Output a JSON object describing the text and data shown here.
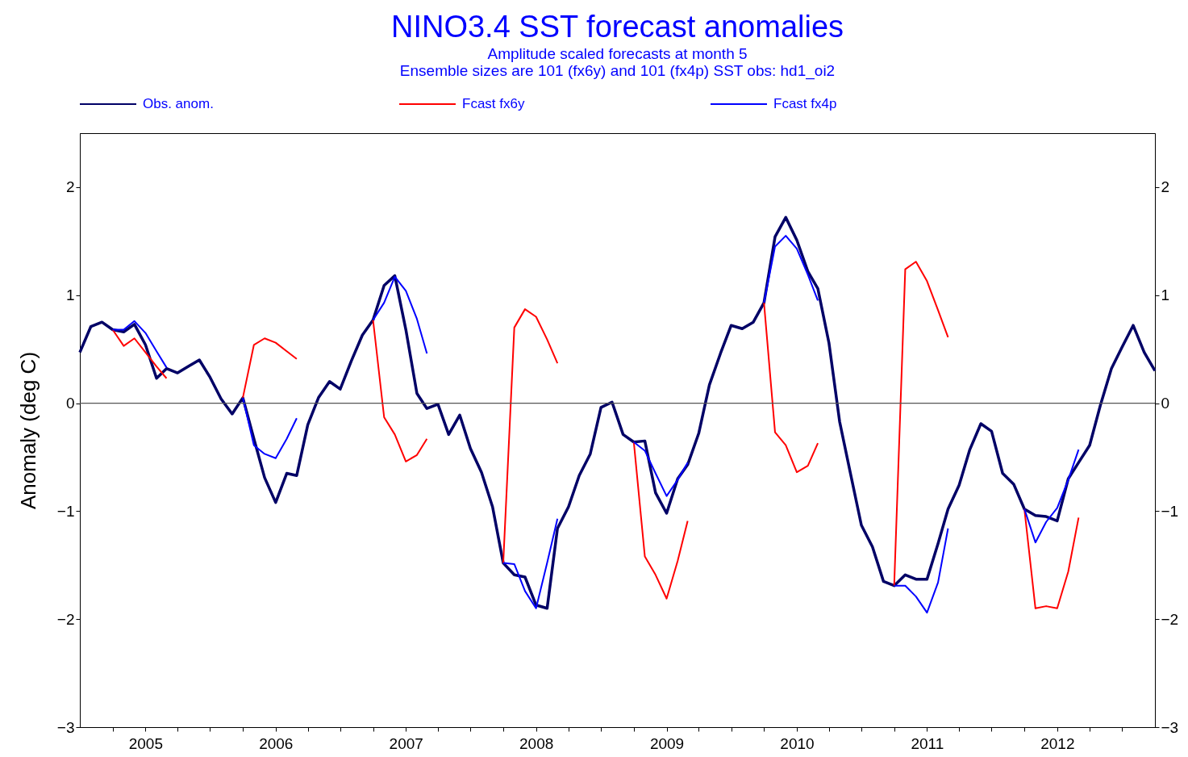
{
  "chart_data": {
    "type": "line",
    "title": "NINO3.4 SST forecast anomalies",
    "subtitle": "Amplitude scaled forecasts at month  5\nEnsemble sizes are 101 (fx6y)  and 101 (fx4p)     SST obs: hd1_oi2",
    "ylabel": "Anomaly (deg C)",
    "x": [
      "2004-07",
      "2004-08",
      "2004-09",
      "2004-10",
      "2004-11",
      "2004-12",
      "2005-01",
      "2005-02",
      "2005-03",
      "2005-04",
      "2005-05",
      "2005-06",
      "2005-07",
      "2005-08",
      "2005-09",
      "2005-10",
      "2005-11",
      "2005-12",
      "2006-01",
      "2006-02",
      "2006-03",
      "2006-04",
      "2006-05",
      "2006-06",
      "2006-07",
      "2006-08",
      "2006-09",
      "2006-10",
      "2006-11",
      "2006-12",
      "2007-01",
      "2007-02",
      "2007-03",
      "2007-04",
      "2007-05",
      "2007-06",
      "2007-07",
      "2007-08",
      "2007-09",
      "2007-10",
      "2007-11",
      "2007-12",
      "2008-01",
      "2008-02",
      "2008-03",
      "2008-04",
      "2008-05",
      "2008-06",
      "2008-07",
      "2008-08",
      "2008-09",
      "2008-10",
      "2008-11",
      "2008-12",
      "2009-01",
      "2009-02",
      "2009-03",
      "2009-04",
      "2009-05",
      "2009-06",
      "2009-07",
      "2009-08",
      "2009-09",
      "2009-10",
      "2009-11",
      "2009-12",
      "2010-01",
      "2010-02",
      "2010-03",
      "2010-04",
      "2010-05",
      "2010-06",
      "2010-07",
      "2010-08",
      "2010-09",
      "2010-10",
      "2010-11",
      "2010-12",
      "2011-01",
      "2011-02",
      "2011-03",
      "2011-04",
      "2011-05",
      "2011-06",
      "2011-07",
      "2011-08",
      "2011-09",
      "2011-10",
      "2011-11",
      "2011-12",
      "2012-01",
      "2012-02",
      "2012-03",
      "2012-04",
      "2012-05",
      "2012-06",
      "2012-07",
      "2012-08",
      "2012-09",
      "2012-10"
    ],
    "series": [
      {
        "name": "Obs. anom.",
        "color": "#000066",
        "values": [
          0.47,
          0.71,
          0.75,
          0.68,
          0.66,
          0.73,
          0.54,
          0.23,
          0.32,
          0.28,
          0.34,
          0.4,
          0.24,
          0.04,
          -0.1,
          0.05,
          -0.33,
          -0.69,
          -0.92,
          -0.65,
          -0.67,
          -0.2,
          0.05,
          0.2,
          0.13,
          0.39,
          0.63,
          0.77,
          1.09,
          1.18,
          0.68,
          0.09,
          -0.05,
          -0.01,
          -0.29,
          -0.11,
          -0.42,
          -0.64,
          -0.96,
          -1.48,
          -1.59,
          -1.61,
          -1.87,
          -1.9,
          -1.16,
          -0.96,
          -0.67,
          -0.47,
          -0.04,
          0.01,
          -0.29,
          -0.36,
          -0.35,
          -0.83,
          -1.02,
          -0.7,
          -0.57,
          -0.28,
          0.17,
          0.46,
          0.72,
          0.69,
          0.75,
          0.93,
          1.54,
          1.72,
          1.51,
          1.22,
          1.06,
          0.56,
          -0.17,
          -0.66,
          -1.13,
          -1.33,
          -1.65,
          -1.69,
          -1.59,
          -1.63,
          -1.63,
          -1.3,
          -0.98,
          -0.76,
          -0.43,
          -0.19,
          -0.26,
          -0.65,
          -0.75,
          -0.98,
          -1.04,
          -1.05,
          -1.09,
          -0.7,
          -0.55,
          -0.39,
          -0.02,
          0.32,
          0.52,
          0.72,
          0.47,
          0.3
        ]
      },
      {
        "name": "Fcast fx6y",
        "color": "#ff0000",
        "values": [
          null,
          null,
          null,
          0.68,
          0.53,
          0.6,
          0.47,
          0.34,
          0.23,
          null,
          null,
          null,
          null,
          null,
          null,
          0.05,
          0.54,
          0.6,
          0.56,
          0.48,
          0.41,
          null,
          null,
          null,
          null,
          null,
          null,
          0.77,
          -0.13,
          -0.29,
          -0.54,
          -0.48,
          -0.33,
          null,
          null,
          null,
          null,
          null,
          null,
          -1.48,
          0.7,
          0.87,
          0.8,
          0.59,
          0.37,
          null,
          null,
          null,
          null,
          null,
          null,
          -0.36,
          -1.42,
          -1.59,
          -1.81,
          -1.46,
          -1.09,
          null,
          null,
          null,
          null,
          null,
          null,
          0.93,
          -0.27,
          -0.39,
          -0.64,
          -0.58,
          -0.37,
          null,
          null,
          null,
          null,
          null,
          null,
          -1.69,
          1.24,
          1.31,
          1.13,
          0.86,
          0.61,
          null,
          null,
          null,
          null,
          null,
          null,
          -0.98,
          -1.9,
          -1.88,
          -1.9,
          -1.56,
          -1.06,
          null,
          null,
          null,
          null,
          null,
          null,
          null
        ]
      },
      {
        "name": "Fcast fx4p",
        "color": "#0000ff",
        "values": [
          null,
          null,
          null,
          0.68,
          0.68,
          0.76,
          0.65,
          0.48,
          0.33,
          null,
          null,
          null,
          null,
          null,
          null,
          0.05,
          -0.39,
          -0.47,
          -0.51,
          -0.33,
          -0.14,
          null,
          null,
          null,
          null,
          null,
          null,
          0.77,
          0.93,
          1.17,
          1.04,
          0.78,
          0.46,
          null,
          null,
          null,
          null,
          null,
          null,
          -1.48,
          -1.49,
          -1.74,
          -1.9,
          -1.48,
          -1.07,
          null,
          null,
          null,
          null,
          null,
          null,
          -0.36,
          -0.44,
          -0.65,
          -0.86,
          -0.71,
          -0.55,
          null,
          null,
          null,
          null,
          null,
          null,
          0.93,
          1.45,
          1.55,
          1.43,
          1.19,
          0.95,
          null,
          null,
          null,
          null,
          null,
          null,
          -1.69,
          -1.69,
          -1.79,
          -1.94,
          -1.66,
          -1.16,
          null,
          null,
          null,
          null,
          null,
          null,
          -0.98,
          -1.29,
          -1.1,
          -0.97,
          -0.71,
          -0.43,
          null,
          null,
          null,
          null,
          null,
          null,
          null
        ]
      }
    ],
    "xlim": [
      "2004-07",
      "2012-10"
    ],
    "xticks": [
      {
        "value": "2004-10",
        "label": null
      },
      {
        "value": "2005-01",
        "label": "2005"
      },
      {
        "value": "2005-04",
        "label": null
      },
      {
        "value": "2005-07",
        "label": null
      },
      {
        "value": "2005-10",
        "label": null
      },
      {
        "value": "2006-01",
        "label": "2006"
      },
      {
        "value": "2006-04",
        "label": null
      },
      {
        "value": "2006-07",
        "label": null
      },
      {
        "value": "2006-10",
        "label": null
      },
      {
        "value": "2007-01",
        "label": "2007"
      },
      {
        "value": "2007-04",
        "label": null
      },
      {
        "value": "2007-07",
        "label": null
      },
      {
        "value": "2007-10",
        "label": null
      },
      {
        "value": "2008-01",
        "label": "2008"
      },
      {
        "value": "2008-04",
        "label": null
      },
      {
        "value": "2008-07",
        "label": null
      },
      {
        "value": "2008-10",
        "label": null
      },
      {
        "value": "2009-01",
        "label": "2009"
      },
      {
        "value": "2009-04",
        "label": null
      },
      {
        "value": "2009-07",
        "label": null
      },
      {
        "value": "2009-10",
        "label": null
      },
      {
        "value": "2010-01",
        "label": "2010"
      },
      {
        "value": "2010-04",
        "label": null
      },
      {
        "value": "2010-07",
        "label": null
      },
      {
        "value": "2010-10",
        "label": null
      },
      {
        "value": "2011-01",
        "label": "2011"
      },
      {
        "value": "2011-04",
        "label": null
      },
      {
        "value": "2011-07",
        "label": null
      },
      {
        "value": "2011-10",
        "label": null
      },
      {
        "value": "2012-01",
        "label": "2012"
      },
      {
        "value": "2012-04",
        "label": null
      },
      {
        "value": "2012-07",
        "label": null
      }
    ],
    "ylim": [
      -3,
      2.5
    ],
    "yticks": [
      -3,
      -2,
      -1,
      0,
      1,
      2
    ],
    "y2lim": [
      -3,
      2.5
    ],
    "y2ticks": [
      -3,
      -2,
      -1,
      0,
      1,
      2
    ],
    "ref_lines": [
      {
        "axis": "y",
        "value": 0,
        "color": "#555555"
      }
    ],
    "legend": "top",
    "grid": false
  }
}
